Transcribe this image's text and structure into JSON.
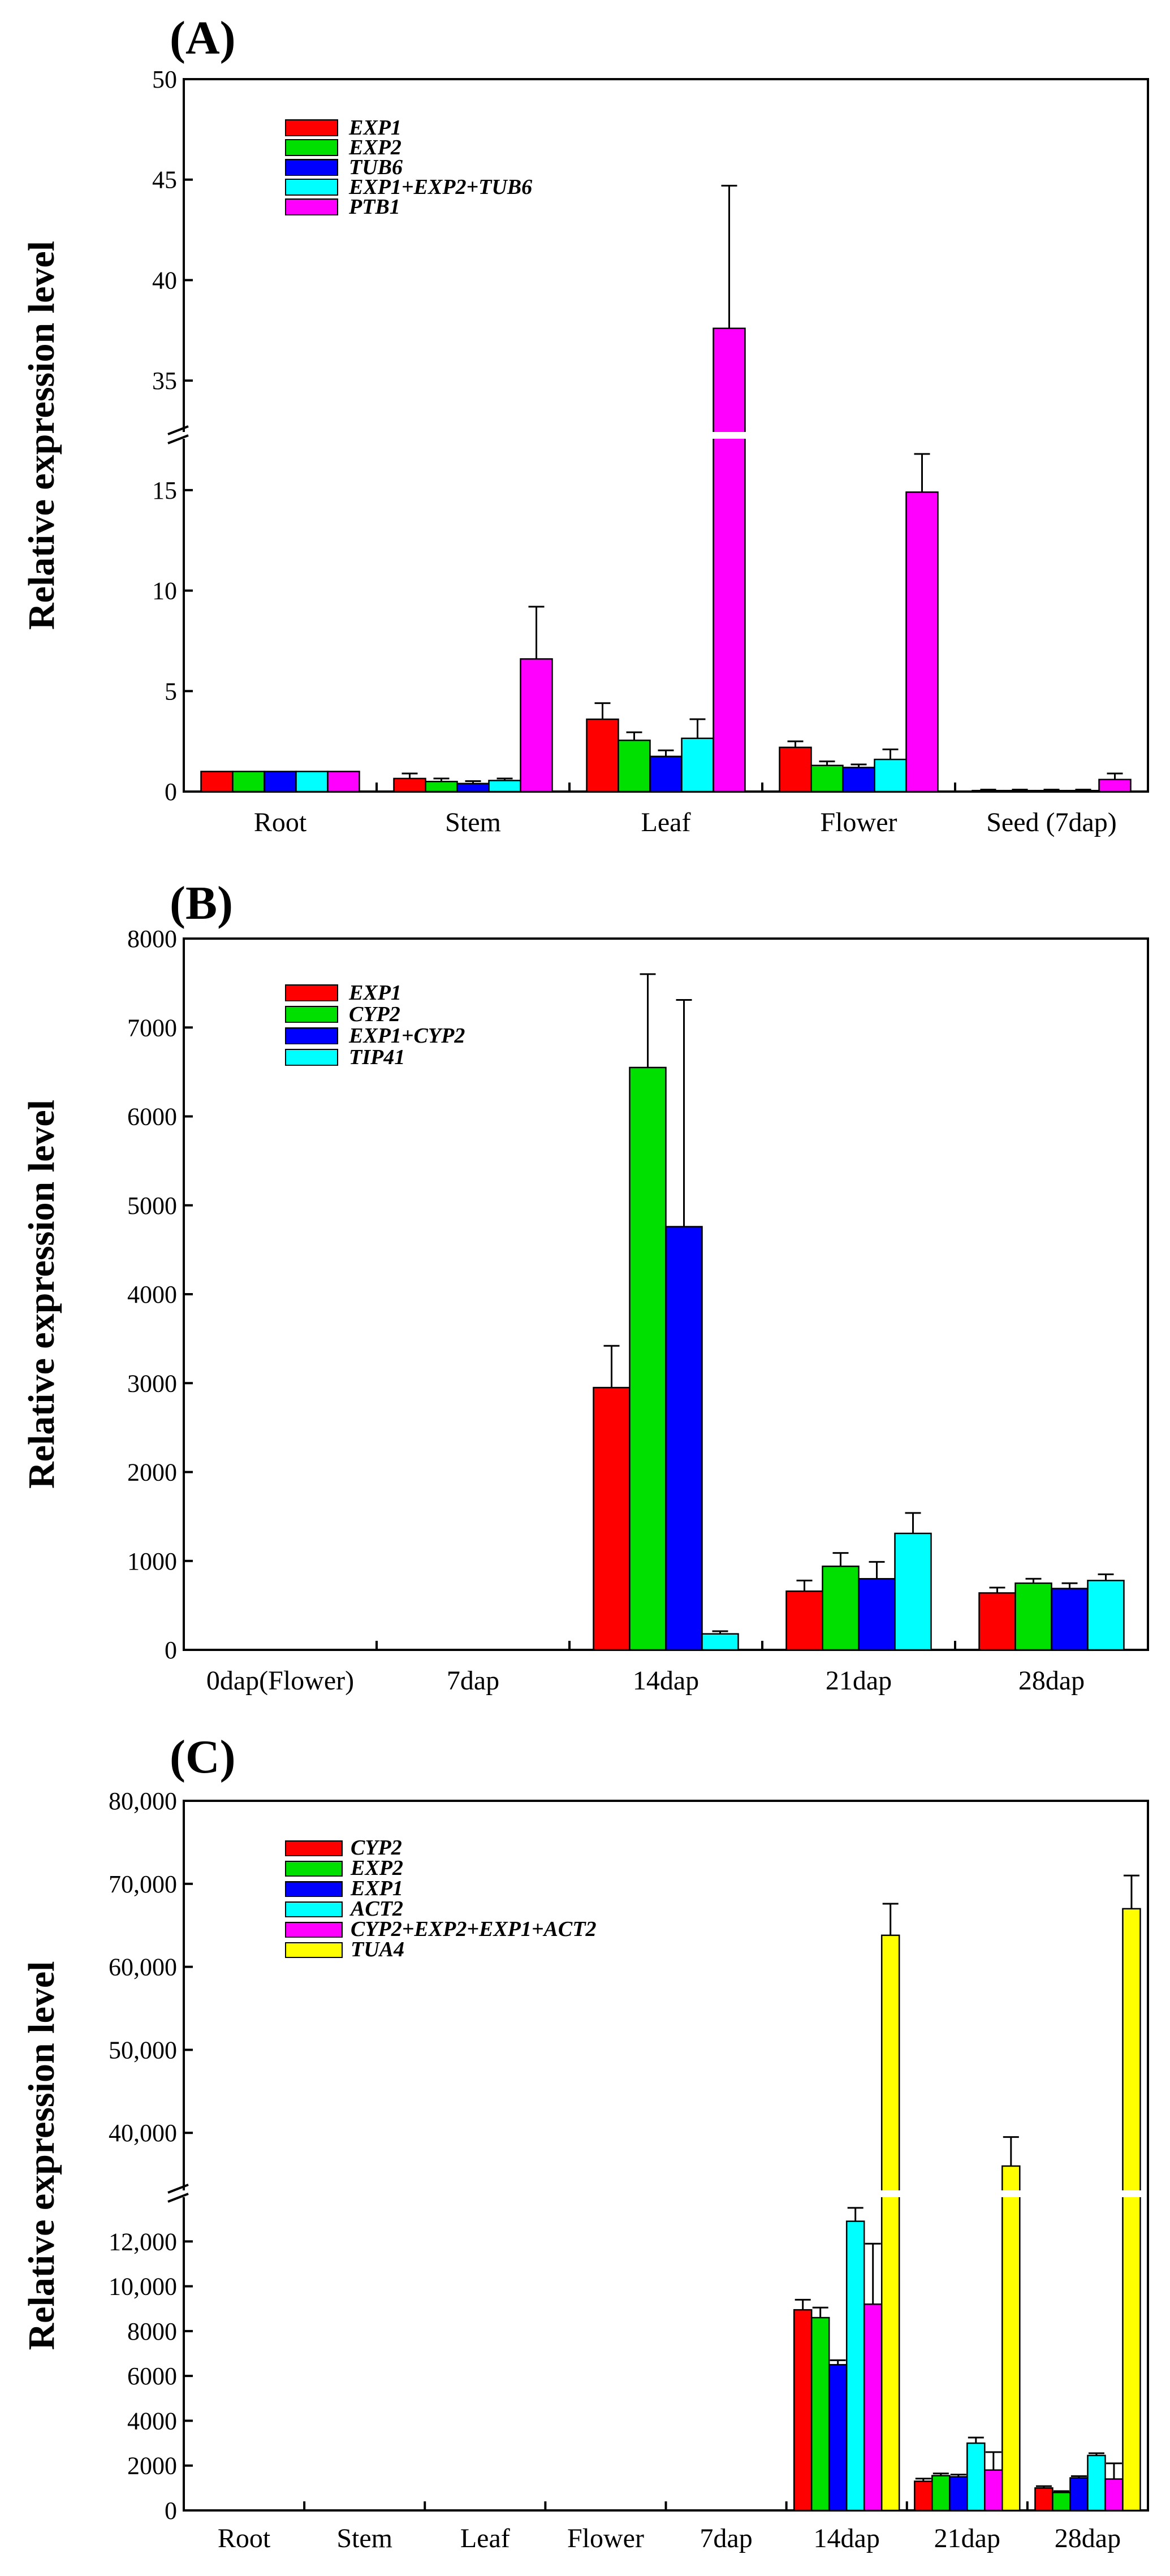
{
  "chart_data": [
    {
      "panel": "(A)",
      "type": "bar",
      "ylabel": "Relative expression level",
      "axis_break": {
        "lower_max": 17.5,
        "upper_min": 32.5
      },
      "y_ticks_lower": [
        "0",
        "5",
        "10",
        "15"
      ],
      "y_ticks_upper": [
        "35",
        "40",
        "45",
        "50"
      ],
      "ylim": [
        0,
        50
      ],
      "categories": [
        "Root",
        "Stem",
        "Leaf",
        "Flower",
        "Seed (7dap)"
      ],
      "series": [
        {
          "name": "EXP1",
          "color": "#ff0000",
          "values": [
            1.0,
            0.65,
            3.6,
            2.2,
            0.05
          ],
          "errors": [
            0,
            0.25,
            0.8,
            0.3,
            0.05
          ]
        },
        {
          "name": "EXP2",
          "color": "#00e000",
          "values": [
            1.0,
            0.5,
            2.55,
            1.3,
            0.05
          ],
          "errors": [
            0,
            0.15,
            0.4,
            0.2,
            0.05
          ]
        },
        {
          "name": "TUB6",
          "color": "#0000ff",
          "values": [
            1.0,
            0.4,
            1.75,
            1.2,
            0.05
          ],
          "errors": [
            0,
            0.12,
            0.3,
            0.15,
            0.05
          ]
        },
        {
          "name": "EXP1+EXP2+TUB6",
          "color": "#00ffff",
          "values": [
            1.0,
            0.55,
            2.65,
            1.6,
            0.05
          ],
          "errors": [
            0,
            0.1,
            0.95,
            0.5,
            0.05
          ]
        },
        {
          "name": "PTB1",
          "color": "#ff00ff",
          "values": [
            1.0,
            6.6,
            37.6,
            14.9,
            0.6
          ],
          "errors": [
            0,
            2.6,
            7.1,
            1.9,
            0.3
          ]
        }
      ]
    },
    {
      "panel": "(B)",
      "type": "bar",
      "ylabel": "Relative expression level",
      "y_ticks": [
        "0",
        "1000",
        "2000",
        "3000",
        "4000",
        "5000",
        "6000",
        "7000",
        "8000"
      ],
      "ylim": [
        0,
        8000
      ],
      "categories": [
        "0dap(Flower)",
        "7dap",
        "14dap",
        "21dap",
        "28dap"
      ],
      "series": [
        {
          "name": "EXP1",
          "color": "#ff0000",
          "values": [
            0,
            0,
            2950,
            660,
            640
          ],
          "errors": [
            0,
            0,
            470,
            120,
            60
          ]
        },
        {
          "name": "CYP2",
          "color": "#00e000",
          "values": [
            0,
            0,
            6550,
            940,
            750
          ],
          "errors": [
            0,
            0,
            1050,
            150,
            50
          ]
        },
        {
          "name": "EXP1+CYP2",
          "color": "#0000ff",
          "values": [
            0,
            0,
            4760,
            800,
            690
          ],
          "errors": [
            0,
            0,
            2550,
            190,
            60
          ]
        },
        {
          "name": "TIP41",
          "color": "#00ffff",
          "values": [
            0,
            0,
            180,
            1310,
            780
          ],
          "errors": [
            0,
            0,
            30,
            230,
            70
          ]
        }
      ]
    },
    {
      "panel": "(C)",
      "type": "bar",
      "ylabel": "Relative expression level",
      "axis_break": {
        "lower_max": 14000,
        "upper_min": 33000
      },
      "y_ticks_lower": [
        "0",
        "2000",
        "4000",
        "6000",
        "8000",
        "10,000",
        "12,000"
      ],
      "y_ticks_upper": [
        "40,000",
        "50,000",
        "60,000",
        "70,000",
        "80,000"
      ],
      "ylim": [
        0,
        80000
      ],
      "categories": [
        "Root",
        "Stem",
        "Leaf",
        "Flower",
        "7dap",
        "14dap",
        "21dap",
        "28dap"
      ],
      "series": [
        {
          "name": "CYP2",
          "color": "#ff0000",
          "values": [
            0,
            0,
            0,
            0,
            0,
            8950,
            1300,
            1000
          ],
          "errors": [
            0,
            0,
            0,
            0,
            0,
            450,
            120,
            80
          ]
        },
        {
          "name": "EXP2",
          "color": "#00e000",
          "values": [
            0,
            0,
            0,
            0,
            0,
            8600,
            1550,
            800
          ],
          "errors": [
            0,
            0,
            0,
            0,
            0,
            450,
            100,
            60
          ]
        },
        {
          "name": "EXP1",
          "color": "#0000ff",
          "values": [
            0,
            0,
            0,
            0,
            0,
            6500,
            1500,
            1450
          ],
          "errors": [
            0,
            0,
            0,
            0,
            0,
            200,
            100,
            80
          ]
        },
        {
          "name": "ACT2",
          "color": "#00ffff",
          "values": [
            0,
            0,
            0,
            0,
            0,
            12900,
            3000,
            2450
          ],
          "errors": [
            0,
            0,
            0,
            0,
            0,
            600,
            250,
            100
          ]
        },
        {
          "name": "CYP2+EXP2+EXP1+ACT2",
          "color": "#ff00ff",
          "values": [
            0,
            0,
            0,
            0,
            0,
            9200,
            1800,
            1400
          ],
          "errors": [
            0,
            0,
            0,
            0,
            0,
            2700,
            800,
            700
          ]
        },
        {
          "name": "TUA4",
          "color": "#ffff00",
          "values": [
            0,
            0,
            0,
            0,
            0,
            63800,
            36000,
            67000
          ],
          "errors": [
            0,
            0,
            0,
            0,
            0,
            3800,
            3500,
            4000
          ]
        }
      ]
    }
  ]
}
